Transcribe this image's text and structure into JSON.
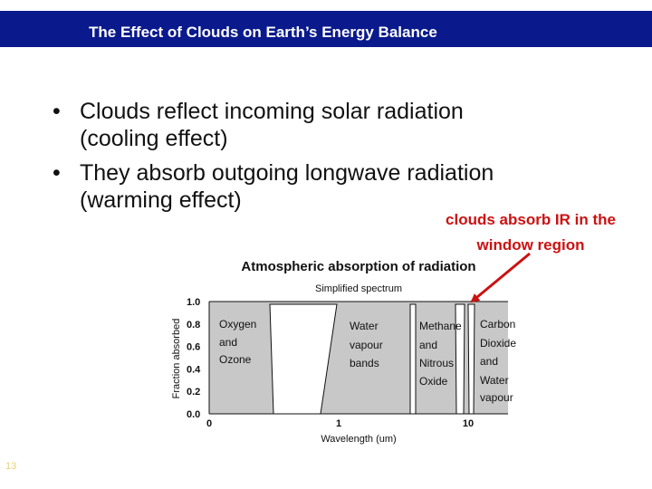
{
  "slide": {
    "title": "The Effect of Clouds on Earth’s Energy Balance",
    "bullets": [
      {
        "line1": "Clouds reflect incoming solar radiation",
        "line2": "(cooling effect)"
      },
      {
        "line1": "They absorb outgoing longwave radiation",
        "line2": "(warming effect)"
      }
    ],
    "callout": {
      "line1": "clouds absorb IR in the",
      "line2": "window region"
    },
    "page_number": "13"
  },
  "colors": {
    "title_bar": "#0a1a8c",
    "callout": "#cc1111",
    "shading": "#c8c8c8"
  },
  "chart_data": {
    "type": "area",
    "title": "Atmospheric absorption of radiation",
    "subtitle": "Simplified spectrum",
    "xlabel": "Wavelength (um)",
    "ylabel": "Fraction absorbed",
    "x_ticks": [
      "0",
      "1",
      "10"
    ],
    "y_ticks": [
      "1.0",
      "0.8",
      "0.6",
      "0.4",
      "0.2",
      "0.0"
    ],
    "ylim": [
      0,
      1
    ],
    "region_labels": [
      {
        "lines": [
          "Oxygen",
          "and",
          "Ozone"
        ]
      },
      {
        "lines": [
          "Water",
          "vapour",
          "bands"
        ]
      },
      {
        "lines": [
          "Methane",
          "and",
          "Nitrous",
          "Oxide"
        ]
      },
      {
        "lines": [
          "Carbon",
          "Dioxide",
          "and",
          "Water",
          "vapour"
        ]
      }
    ]
  }
}
